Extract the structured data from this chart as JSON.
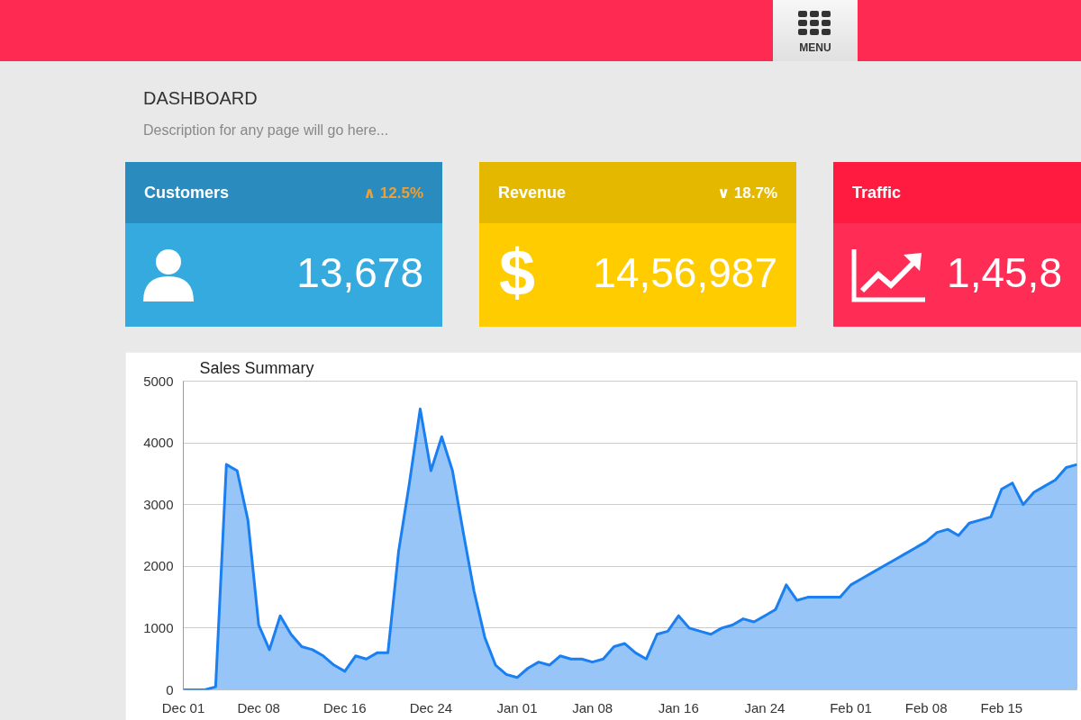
{
  "chart_data": [
    {
      "type": "other",
      "title": "DASHBOARD",
      "subtitle": "Description for any page will go here...",
      "annotations": [
        "MENU"
      ]
    },
    {
      "type": "other",
      "title": "Customers",
      "annotations": [
        "∧ 12.5%",
        "13,678"
      ],
      "colors": [
        "#2a8bbf",
        "#35aade",
        "#f0a030"
      ]
    },
    {
      "type": "other",
      "title": "Revenue",
      "annotations": [
        "∨ 18.7%",
        "$",
        "14,56,987"
      ],
      "colors": [
        "#e5b800",
        "#ffcc00",
        "#ffffff"
      ]
    },
    {
      "type": "other",
      "title": "Traffic",
      "annotations": [
        "1,45,8"
      ],
      "colors": [
        "#ff1a40",
        "#ff2d55",
        "#ffffff"
      ]
    },
    {
      "type": "area",
      "title": "Sales Summary",
      "categories": [
        "Dec 01",
        null,
        null,
        null,
        null,
        null,
        null,
        "Dec 08",
        null,
        null,
        null,
        null,
        null,
        null,
        null,
        "Dec 16",
        null,
        null,
        null,
        null,
        null,
        null,
        null,
        "Dec 24",
        null,
        null,
        null,
        null,
        null,
        null,
        null,
        "Jan 01",
        null,
        null,
        null,
        null,
        null,
        null,
        "Jan 08",
        null,
        null,
        null,
        null,
        null,
        null,
        null,
        "Jan 16",
        null,
        null,
        null,
        null,
        null,
        null,
        null,
        "Jan 24",
        null,
        null,
        null,
        null,
        null,
        null,
        null,
        "Feb 01",
        null,
        null,
        null,
        null,
        null,
        null,
        "Feb 08",
        null,
        null,
        null,
        null,
        null,
        null,
        "Feb 15",
        null,
        null,
        null,
        null,
        null,
        null,
        null
      ],
      "values": [
        0,
        0,
        0,
        50,
        3650,
        3550,
        2750,
        1050,
        650,
        1200,
        900,
        700,
        650,
        550,
        400,
        300,
        550,
        500,
        600,
        600,
        2250,
        3350,
        4550,
        3550,
        4100,
        3550,
        2550,
        1600,
        850,
        400,
        250,
        200,
        350,
        450,
        400,
        550,
        500,
        500,
        450,
        500,
        700,
        750,
        600,
        500,
        900,
        950,
        1200,
        1000,
        950,
        900,
        1000,
        1050,
        1150,
        1100,
        1200,
        1300,
        1700,
        1450,
        1500,
        1500,
        1500,
        1500,
        1700,
        1800,
        1900,
        2000,
        2100,
        2200,
        2300,
        2400,
        2550,
        2600,
        2500,
        2700,
        2750,
        2800,
        3250,
        3350,
        3000,
        3200,
        3300,
        3400,
        3600,
        3650
      ],
      "color": "#1a7ff0",
      "ylim": [
        0,
        5000
      ],
      "yticks": [
        0,
        1000,
        2000,
        3000,
        4000,
        5000
      ],
      "grid": "y"
    }
  ]
}
